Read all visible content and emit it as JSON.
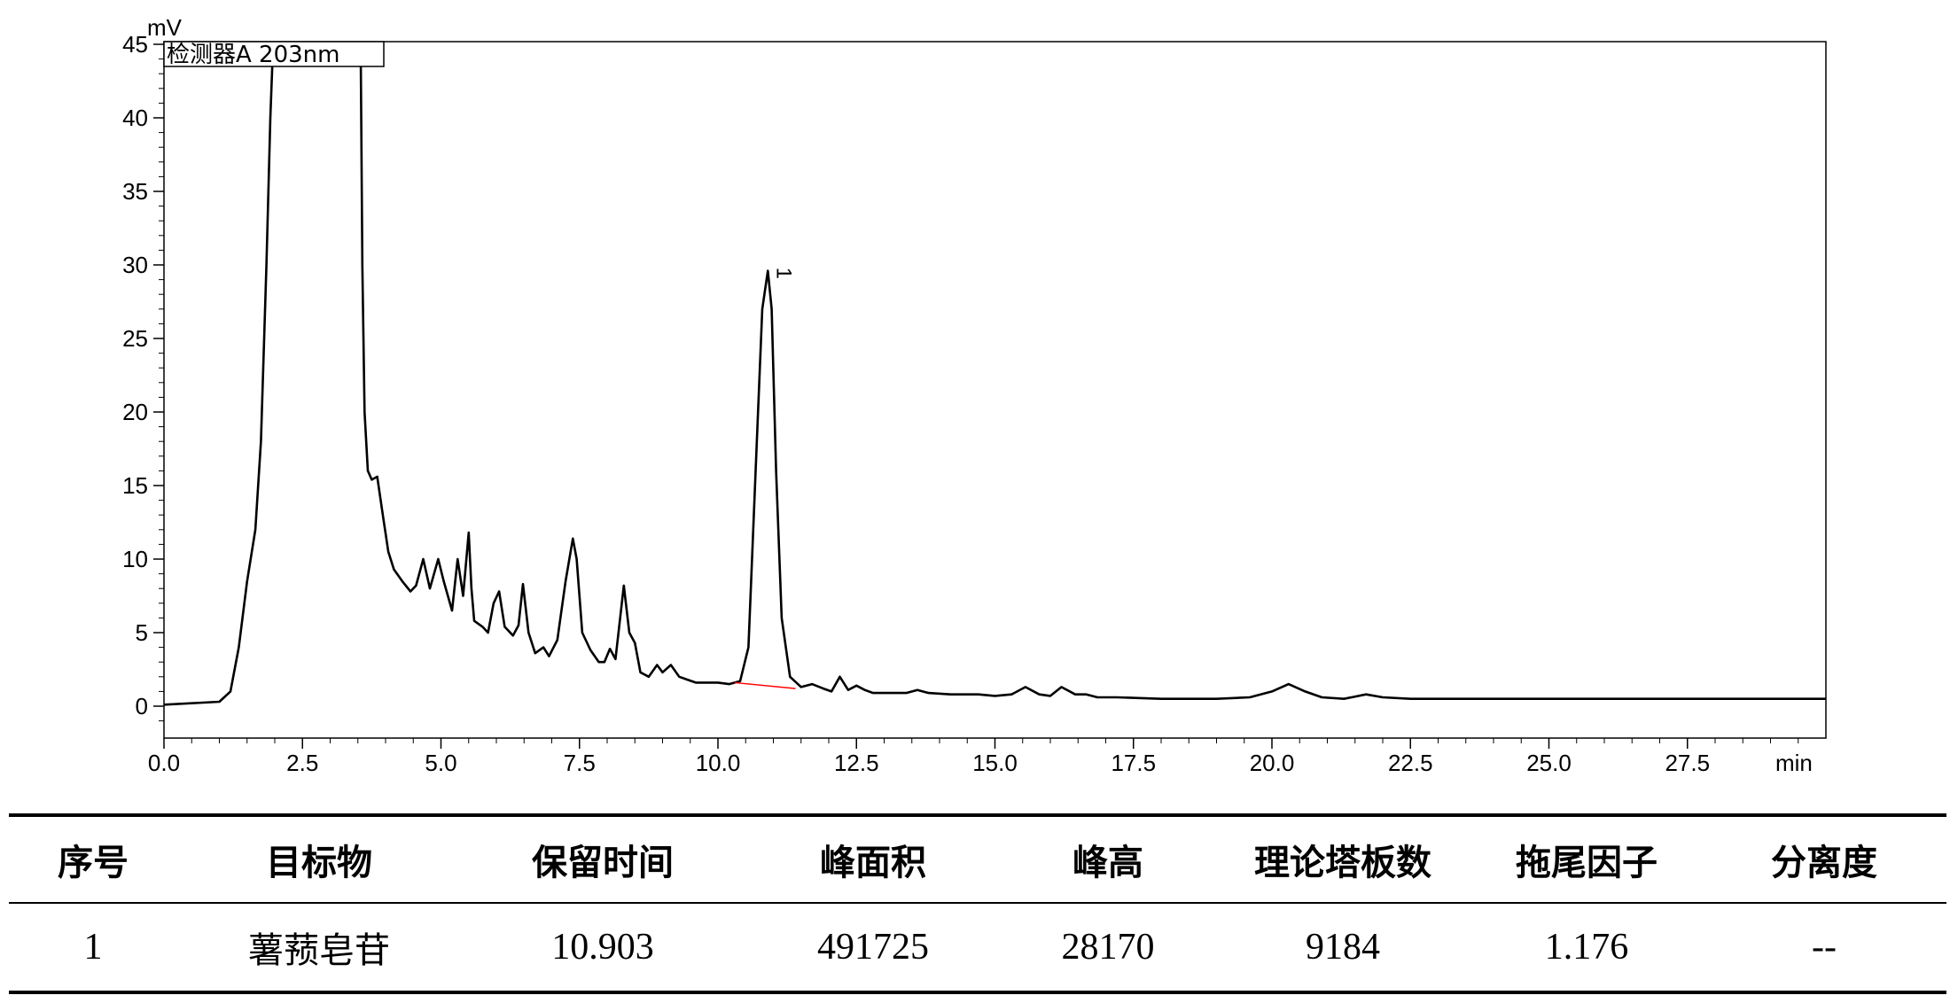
{
  "chart_data": {
    "type": "line",
    "y_unit": "mV",
    "x_unit": "min",
    "detector_label": "检测器A 203nm",
    "xlim": [
      0.0,
      30.0
    ],
    "ylim": [
      -2,
      45
    ],
    "x_ticks": [
      "0.0",
      "2.5",
      "5.0",
      "7.5",
      "10.0",
      "12.5",
      "15.0",
      "17.5",
      "20.0",
      "22.5",
      "25.0",
      "27.5"
    ],
    "y_ticks": [
      "0",
      "5",
      "10",
      "15",
      "20",
      "25",
      "30",
      "35",
      "40",
      "45"
    ],
    "peak_label": {
      "text": "1",
      "x": 10.903,
      "y": 29.6
    },
    "baseline_segment": [
      [
        10.3,
        1.6
      ],
      [
        11.4,
        1.2
      ]
    ],
    "series": [
      {
        "x": [
          0.0,
          1.0,
          1.2,
          1.35,
          1.5,
          1.65,
          1.75,
          1.85,
          1.92,
          1.97,
          2.02,
          3.55,
          3.58,
          3.62,
          3.68,
          3.75,
          3.85,
          3.95,
          4.05,
          4.15,
          4.3,
          4.45,
          4.55,
          4.68,
          4.8,
          4.95,
          5.05,
          5.2,
          5.3,
          5.4,
          5.5,
          5.55,
          5.6,
          5.75,
          5.85,
          5.95,
          6.05,
          6.15,
          6.3,
          6.4,
          6.48,
          6.58,
          6.7,
          6.85,
          6.95,
          7.1,
          7.25,
          7.38,
          7.45,
          7.55,
          7.7,
          7.85,
          7.95,
          8.05,
          8.15,
          8.3,
          8.4,
          8.5,
          8.6,
          8.75,
          8.9,
          9.0,
          9.15,
          9.3,
          9.45,
          9.6,
          9.8,
          10.0,
          10.2,
          10.4,
          10.55,
          10.68,
          10.8,
          10.9,
          10.97,
          11.05,
          11.15,
          11.3,
          11.5,
          11.7,
          11.9,
          12.05,
          12.2,
          12.35,
          12.5,
          12.65,
          12.8,
          13.1,
          13.4,
          13.6,
          13.8,
          14.2,
          14.7,
          15.0,
          15.3,
          15.55,
          15.8,
          16.0,
          16.2,
          16.45,
          16.65,
          16.85,
          17.2,
          18.0,
          19.0,
          19.6,
          20.0,
          20.3,
          20.6,
          20.9,
          21.3,
          21.7,
          22.0,
          22.5,
          24.0,
          26.0,
          28.0,
          30.0
        ],
        "y": [
          0.1,
          0.3,
          1.0,
          4.0,
          8.5,
          12.0,
          18.0,
          30.0,
          40.0,
          45,
          45,
          45,
          30.0,
          20.0,
          16.0,
          15.4,
          15.6,
          13.0,
          10.5,
          9.3,
          8.5,
          7.8,
          8.2,
          10.0,
          8.0,
          10.0,
          8.5,
          6.5,
          10.0,
          7.5,
          11.8,
          8.0,
          5.8,
          5.4,
          5.0,
          7.0,
          7.8,
          5.4,
          4.8,
          5.5,
          8.3,
          5.0,
          3.6,
          4.0,
          3.4,
          4.5,
          8.5,
          11.4,
          10.0,
          5.0,
          3.8,
          3.0,
          3.0,
          3.9,
          3.2,
          8.2,
          5.0,
          4.3,
          2.3,
          2.0,
          2.8,
          2.3,
          2.8,
          2.0,
          1.8,
          1.6,
          1.6,
          1.6,
          1.5,
          1.7,
          4.0,
          16.0,
          27.0,
          29.6,
          27.0,
          16.0,
          6.0,
          2.0,
          1.3,
          1.5,
          1.2,
          1.0,
          2.0,
          1.1,
          1.4,
          1.1,
          0.9,
          0.9,
          0.9,
          1.1,
          0.9,
          0.8,
          0.8,
          0.7,
          0.8,
          1.3,
          0.8,
          0.7,
          1.3,
          0.8,
          0.8,
          0.6,
          0.6,
          0.5,
          0.5,
          0.6,
          1.0,
          1.5,
          1.0,
          0.6,
          0.5,
          0.8,
          0.6,
          0.5,
          0.5,
          0.5,
          0.5,
          0.5
        ]
      }
    ]
  },
  "table": {
    "headers": [
      "序号",
      "目标物",
      "保留时间",
      "峰面积",
      "峰高",
      "理论塔板数",
      "拖尾因子",
      "分离度"
    ],
    "rows": [
      [
        "1",
        "薯蓣皂苷",
        "10.903",
        "491725",
        "28170",
        "9184",
        "1.176",
        "--"
      ]
    ]
  },
  "colors": {
    "trace": "#000000",
    "baseline": "#ff0000",
    "axis": "#000000"
  }
}
